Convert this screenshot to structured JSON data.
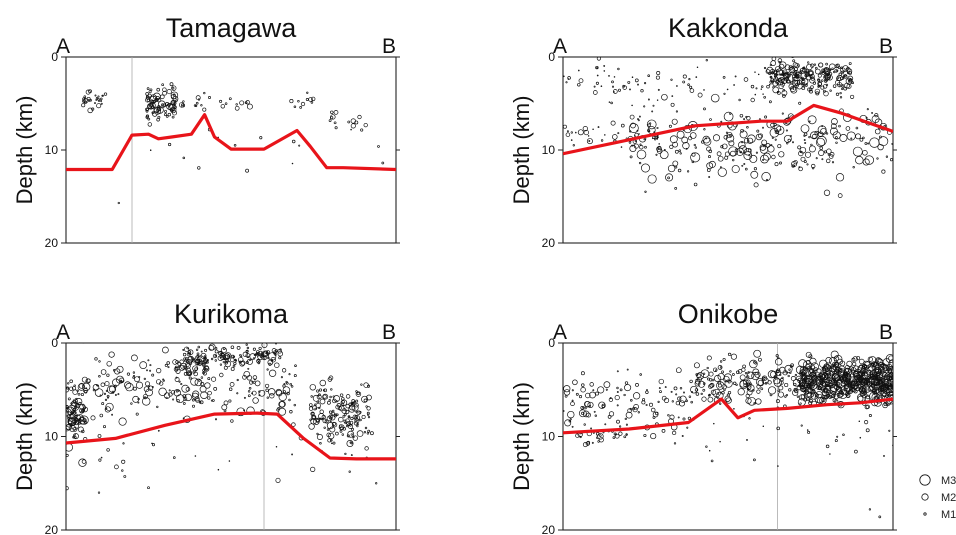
{
  "legend": {
    "position": "bottom-right",
    "entries": [
      {
        "label": "M3",
        "mag": 3
      },
      {
        "label": "M2",
        "mag": 2
      },
      {
        "label": "M1",
        "mag": 1
      }
    ]
  },
  "chart_data": [
    {
      "type": "scatter",
      "title": "Tamagawa",
      "end_left": "A",
      "end_right": "B",
      "ylabel": "Depth (km)",
      "ylim": [
        0,
        20
      ],
      "y_inverted": true,
      "yticks": [
        0,
        10,
        20
      ],
      "xlim": [
        0,
        1
      ],
      "vertical_line_at": 0.2,
      "boundary": {
        "x": [
          0,
          0.14,
          0.2,
          0.25,
          0.28,
          0.32,
          0.38,
          0.42,
          0.45,
          0.5,
          0.6,
          0.7,
          0.74,
          0.79,
          0.84,
          1.0
        ],
        "y": [
          12.1,
          12.1,
          8.4,
          8.3,
          8.8,
          8.6,
          8.3,
          6.2,
          8.6,
          9.9,
          9.9,
          7.9,
          9.6,
          11.9,
          11.9,
          12.1
        ]
      },
      "clusters": [
        {
          "x": [
            0.05,
            0.12
          ],
          "depth": [
            3.8,
            5.6
          ],
          "count": 28,
          "mag": [
            0.7,
            1.6
          ],
          "spread": 1
        },
        {
          "x": [
            0.24,
            0.33
          ],
          "depth": [
            3.2,
            6.8
          ],
          "count": 75,
          "mag": [
            0.9,
            2.2
          ],
          "spread": 1.2
        },
        {
          "x": [
            0.33,
            0.62
          ],
          "depth": [
            3.8,
            6.0
          ],
          "count": 25,
          "mag": [
            0.8,
            1.7
          ],
          "spread": 1
        },
        {
          "x": [
            0.67,
            0.75
          ],
          "depth": [
            4.0,
            5.5
          ],
          "count": 10,
          "mag": [
            0.8,
            1.5
          ],
          "spread": 1
        },
        {
          "x": [
            0.8,
            0.92
          ],
          "depth": [
            6.0,
            8.0
          ],
          "count": 14,
          "mag": [
            0.9,
            1.6
          ],
          "spread": 1
        },
        {
          "x": [
            0.1,
            1.0
          ],
          "depth": [
            6.5,
            12.5
          ],
          "count": 14,
          "mag": [
            0.6,
            1.2
          ],
          "spread": 1
        }
      ],
      "points": [
        {
          "x": 0.16,
          "depth": 15.7,
          "mag": 0.8
        },
        {
          "x": 0.96,
          "depth": 11.4,
          "mag": 0.9
        }
      ]
    },
    {
      "type": "scatter",
      "title": "Kakkonda",
      "end_left": "A",
      "end_right": "B",
      "ylabel": "Depth (km)",
      "ylim": [
        0,
        20
      ],
      "y_inverted": true,
      "yticks": [
        0,
        10,
        20
      ],
      "xlim": [
        0,
        1
      ],
      "boundary": {
        "x": [
          0,
          0.2,
          0.4,
          0.6,
          0.68,
          0.76,
          0.84,
          0.92,
          1.0
        ],
        "y": [
          10.4,
          8.9,
          7.4,
          6.9,
          6.9,
          5.2,
          6.0,
          7.0,
          8.0
        ]
      },
      "clusters": [
        {
          "x": [
            0.62,
            0.88
          ],
          "depth": [
            0.3,
            4.0
          ],
          "count": 230,
          "mag": [
            0.8,
            2.0
          ],
          "spread": 1.1
        },
        {
          "x": [
            0.2,
            1.0
          ],
          "depth": [
            5.0,
            13.0
          ],
          "count": 290,
          "mag": [
            0.7,
            2.8
          ],
          "spread": 1
        },
        {
          "x": [
            0.0,
            0.7
          ],
          "depth": [
            0.3,
            5.0
          ],
          "count": 85,
          "mag": [
            0.6,
            1.5
          ],
          "spread": 1
        },
        {
          "x": [
            0.0,
            0.3
          ],
          "depth": [
            7.0,
            10.0
          ],
          "count": 40,
          "mag": [
            0.6,
            1.8
          ],
          "spread": 1
        }
      ],
      "points": [
        {
          "x": 0.25,
          "depth": 14.5,
          "mag": 0.8
        },
        {
          "x": 0.32,
          "depth": 13.0,
          "mag": 0.9
        },
        {
          "x": 0.8,
          "depth": 14.6,
          "mag": 1.8
        },
        {
          "x": 0.84,
          "depth": 14.9,
          "mag": 1.4
        }
      ]
    },
    {
      "type": "scatter",
      "title": "Kurikoma",
      "end_left": "A",
      "end_right": "B",
      "ylabel": "Depth (km)",
      "ylim": [
        0,
        20
      ],
      "y_inverted": true,
      "yticks": [
        0,
        10,
        20
      ],
      "xlim": [
        0,
        1
      ],
      "vertical_line_at": 0.6,
      "boundary": {
        "x": [
          0,
          0.15,
          0.3,
          0.45,
          0.58,
          0.64,
          0.72,
          0.8,
          0.88,
          1.0
        ],
        "y": [
          10.7,
          10.2,
          8.8,
          7.6,
          7.5,
          7.6,
          10.2,
          12.3,
          12.4,
          12.4
        ]
      },
      "clusters": [
        {
          "x": [
            0.0,
            0.06
          ],
          "depth": [
            4.0,
            10.5
          ],
          "count": 85,
          "mag": [
            0.8,
            2.6
          ],
          "spread": 1
        },
        {
          "x": [
            0.74,
            0.92
          ],
          "depth": [
            4.5,
            10.5
          ],
          "count": 160,
          "mag": [
            0.8,
            2.0
          ],
          "spread": 1.1
        },
        {
          "x": [
            0.35,
            0.65
          ],
          "depth": [
            0.2,
            2.8
          ],
          "count": 110,
          "mag": [
            0.8,
            2.0
          ],
          "spread": 1
        },
        {
          "x": [
            0.33,
            0.43
          ],
          "depth": [
            1.5,
            3.5
          ],
          "count": 45,
          "mag": [
            0.9,
            1.8
          ],
          "spread": 1
        },
        {
          "x": [
            0.05,
            0.7
          ],
          "depth": [
            1.0,
            8.0
          ],
          "count": 230,
          "mag": [
            0.7,
            2.4
          ],
          "spread": 1
        },
        {
          "x": [
            0.0,
            1.0
          ],
          "depth": [
            8.0,
            15.5
          ],
          "count": 40,
          "mag": [
            0.6,
            1.6
          ],
          "spread": 1
        }
      ],
      "points": [
        {
          "x": 0.05,
          "depth": 12.8,
          "mag": 2.3
        },
        {
          "x": 0.1,
          "depth": 16.0,
          "mag": 0.8
        },
        {
          "x": 0.94,
          "depth": 15.0,
          "mag": 0.8
        }
      ]
    },
    {
      "type": "scatter",
      "title": "Onikobe",
      "end_left": "A",
      "end_right": "B",
      "ylabel": "Depth (km)",
      "ylim": [
        0,
        20
      ],
      "y_inverted": true,
      "yticks": [
        0,
        10,
        20
      ],
      "xlim": [
        0,
        1
      ],
      "vertical_line_at": 0.65,
      "boundary": {
        "x": [
          0,
          0.2,
          0.38,
          0.48,
          0.53,
          0.58,
          0.68,
          0.8,
          0.9,
          1.0
        ],
        "y": [
          9.6,
          9.2,
          8.5,
          6.0,
          8.0,
          7.2,
          7.0,
          6.6,
          6.4,
          6.0
        ]
      },
      "clusters": [
        {
          "x": [
            0.72,
            1.0
          ],
          "depth": [
            1.8,
            6.2
          ],
          "count": 480,
          "mag": [
            1.2,
            2.6
          ],
          "spread": 1.1
        },
        {
          "x": [
            0.4,
            0.72
          ],
          "depth": [
            1.5,
            6.5
          ],
          "count": 160,
          "mag": [
            0.8,
            2.4
          ],
          "spread": 1
        },
        {
          "x": [
            0.0,
            0.4
          ],
          "depth": [
            3.0,
            10.5
          ],
          "count": 130,
          "mag": [
            0.7,
            2.2
          ],
          "spread": 1
        },
        {
          "x": [
            0.05,
            0.2
          ],
          "depth": [
            9.0,
            11.0
          ],
          "count": 22,
          "mag": [
            0.7,
            1.6
          ],
          "spread": 1
        },
        {
          "x": [
            0.4,
            1.0
          ],
          "depth": [
            7.0,
            13.0
          ],
          "count": 30,
          "mag": [
            0.6,
            1.3
          ],
          "spread": 1
        }
      ],
      "points": [
        {
          "x": 0.93,
          "depth": 17.8,
          "mag": 0.8
        },
        {
          "x": 0.96,
          "depth": 18.6,
          "mag": 0.9
        },
        {
          "x": 0.58,
          "depth": 12.5,
          "mag": 0.9
        }
      ]
    }
  ]
}
